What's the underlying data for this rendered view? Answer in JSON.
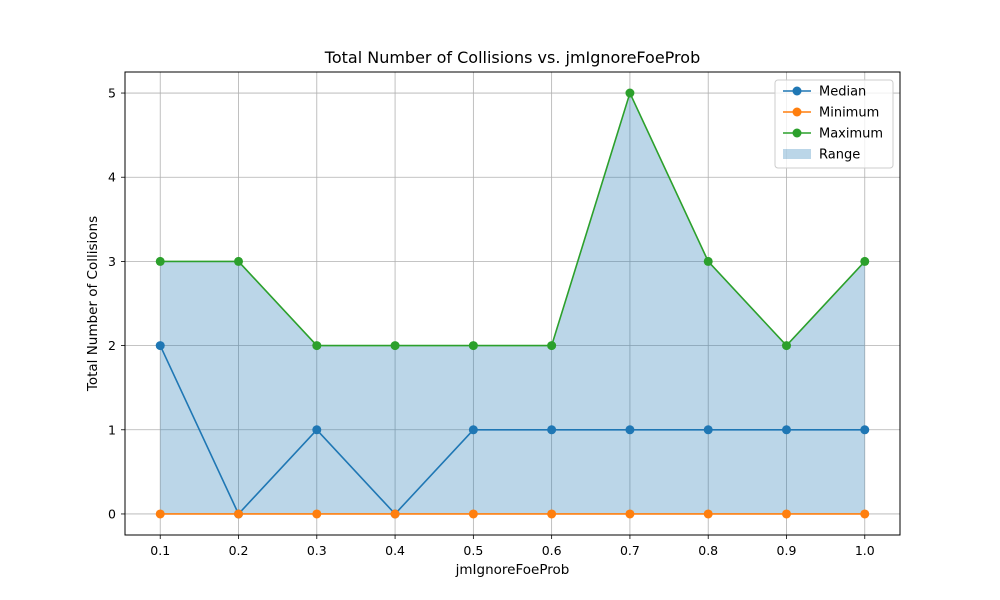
{
  "chart_data": {
    "type": "line",
    "title": "Total Number of Collisions vs. jmIgnoreFoeProb",
    "xlabel": "jmIgnoreFoeProb",
    "ylabel": "Total Number of Collisions",
    "x": [
      0.1,
      0.2,
      0.3,
      0.4,
      0.5,
      0.6,
      0.7,
      0.8,
      0.9,
      1.0
    ],
    "x_tick_labels": [
      "0.1",
      "0.2",
      "0.3",
      "0.4",
      "0.5",
      "0.6",
      "0.7",
      "0.8",
      "0.9",
      "1.0"
    ],
    "y_ticks": [
      0,
      1,
      2,
      3,
      4,
      5
    ],
    "y_tick_labels": [
      "0",
      "1",
      "2",
      "3",
      "4",
      "5"
    ],
    "xlim": [
      0.055,
      1.045
    ],
    "ylim": [
      -0.25,
      5.25
    ],
    "grid": true,
    "legend_position": "top-right",
    "series": [
      {
        "name": "Median",
        "color": "#1f77b4",
        "values": [
          2,
          0,
          1,
          0,
          1,
          1,
          1,
          1,
          1,
          1
        ]
      },
      {
        "name": "Minimum",
        "color": "#ff7f0e",
        "values": [
          0,
          0,
          0,
          0,
          0,
          0,
          0,
          0,
          0,
          0
        ]
      },
      {
        "name": "Maximum",
        "color": "#2ca02c",
        "values": [
          3,
          3,
          2,
          2,
          2,
          2,
          5,
          3,
          2,
          3
        ]
      }
    ],
    "range_band": {
      "name": "Range",
      "color": "#1f77b4",
      "lower_series": "Minimum",
      "upper_series": "Maximum"
    }
  }
}
